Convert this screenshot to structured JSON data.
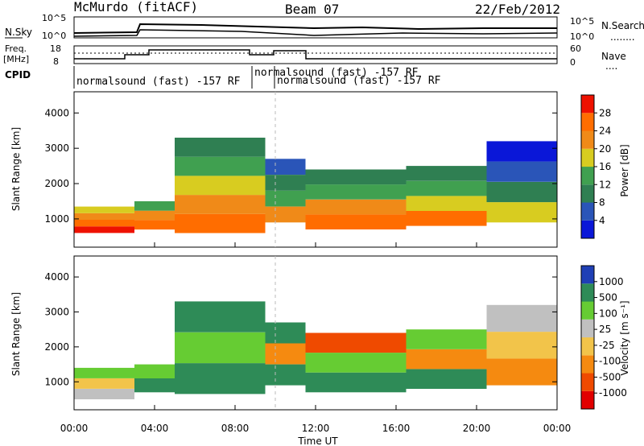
{
  "header": {
    "station": "McMurdo (fitACF)",
    "beam": "Beam 07",
    "date": "22/Feb/2012"
  },
  "noise_panel": {
    "left_label": "N.Sky",
    "right_label": "N.Search",
    "left_ticks": [
      "10^5",
      "10^0"
    ],
    "right_ticks": [
      "10^5",
      "10^0"
    ],
    "right_legend": "........"
  },
  "freq_panel": {
    "left_label_1": "Freq.",
    "left_label_2": "[MHz]",
    "left_ticks": [
      "18",
      "8"
    ],
    "right_label": "Nave",
    "right_ticks": [
      "60",
      "0"
    ],
    "right_legend": "...."
  },
  "cpid": {
    "label": "CPID",
    "segments": [
      {
        "text": "normalsound (fast) -157 RF",
        "start_hour": 0.0
      },
      {
        "text": "normalsound (fast) -157 RF",
        "start_hour": 9.0
      },
      {
        "text": "normalsound (fast) -157 RF",
        "start_hour": 10.0
      }
    ]
  },
  "colors": {
    "power": [
      "#0a17d8",
      "#2a55b8",
      "#2f7f52",
      "#40a050",
      "#d8cc20",
      "#f08a18",
      "#ff6d00",
      "#ee1100"
    ],
    "velocity": [
      "#e10000",
      "#ef4a00",
      "#f58a10",
      "#f2c44a",
      "#c0c0c0",
      "#66cc33",
      "#2e8b57",
      "#1f3fb5"
    ]
  },
  "chart_data": [
    {
      "type": "heatmap",
      "name": "power",
      "ylabel": "Slant Range [km]",
      "yticks": [
        "1000",
        "2000",
        "3000",
        "4000"
      ],
      "ylim": [
        200,
        4600
      ],
      "xlim": [
        0,
        24
      ],
      "colorbar_label": "Power [dB]",
      "colorbar_ticks": [
        "4",
        "8",
        "12",
        "16",
        "20",
        "24",
        "28"
      ],
      "bands": [
        {
          "start": 0.0,
          "end": 3.0,
          "low": 600,
          "high": 1350,
          "levels": [
            7,
            6,
            5,
            4
          ]
        },
        {
          "start": 3.0,
          "end": 5.0,
          "low": 700,
          "high": 1500,
          "levels": [
            6,
            5,
            3
          ]
        },
        {
          "start": 5.0,
          "end": 9.5,
          "low": 600,
          "high": 3300,
          "levels": [
            6,
            5,
            4,
            3,
            2
          ]
        },
        {
          "start": 9.5,
          "end": 11.5,
          "low": 900,
          "high": 2700,
          "levels": [
            5,
            3,
            2,
            1
          ]
        },
        {
          "start": 11.5,
          "end": 16.5,
          "low": 700,
          "high": 2400,
          "levels": [
            6,
            5,
            3,
            2
          ]
        },
        {
          "start": 16.5,
          "end": 20.5,
          "low": 800,
          "high": 2500,
          "levels": [
            6,
            4,
            3,
            2
          ]
        },
        {
          "start": 20.5,
          "end": 24.0,
          "low": 900,
          "high": 3200,
          "levels": [
            4,
            2,
            1,
            0
          ]
        }
      ]
    },
    {
      "type": "heatmap",
      "name": "velocity",
      "ylabel": "Slant Range [km]",
      "xlabel": "Time UT",
      "xticks": [
        "00:00",
        "04:00",
        "08:00",
        "12:00",
        "16:00",
        "20:00",
        "00:00"
      ],
      "yticks": [
        "1000",
        "2000",
        "3000",
        "4000"
      ],
      "ylim": [
        200,
        4600
      ],
      "xlim": [
        0,
        24
      ],
      "colorbar_label": "Velocity [m s⁻¹]",
      "colorbar_ticks": [
        "1000",
        "500",
        "100",
        "25",
        "-25",
        "-100",
        "-500",
        "-1000"
      ],
      "bands": [
        {
          "start": 0.0,
          "end": 3.0,
          "low": 500,
          "high": 1400,
          "levels": [
            4,
            3,
            5
          ]
        },
        {
          "start": 3.0,
          "end": 5.0,
          "low": 700,
          "high": 1500,
          "levels": [
            6,
            5
          ]
        },
        {
          "start": 5.0,
          "end": 9.5,
          "low": 650,
          "high": 3300,
          "levels": [
            6,
            5,
            6
          ]
        },
        {
          "start": 9.5,
          "end": 11.5,
          "low": 900,
          "high": 2700,
          "levels": [
            6,
            2,
            6
          ]
        },
        {
          "start": 11.5,
          "end": 16.5,
          "low": 700,
          "high": 2400,
          "levels": [
            6,
            5,
            1
          ]
        },
        {
          "start": 16.5,
          "end": 20.5,
          "low": 800,
          "high": 2500,
          "levels": [
            6,
            2,
            5
          ]
        },
        {
          "start": 20.5,
          "end": 24.0,
          "low": 900,
          "high": 3200,
          "levels": [
            2,
            3,
            4
          ]
        }
      ]
    }
  ]
}
